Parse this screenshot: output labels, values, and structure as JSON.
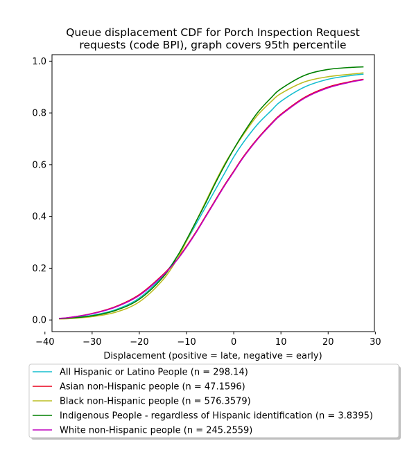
{
  "chart_data": {
    "type": "line",
    "title": "Queue displacement CDF for Porch Inspection Request requests (code BPI), graph covers 95th percentile",
    "title_lines": [
      "Queue displacement CDF for Porch Inspection Request",
      "requests (code BPI), graph covers 95th percentile"
    ],
    "xlabel": "Displacement (positive = late, negative = early)",
    "ylabel": "",
    "xlim": [
      -38.5,
      29.8
    ],
    "ylim": [
      -0.045,
      1.025
    ],
    "x_ticks": [
      -40,
      -30,
      -20,
      -10,
      0,
      10,
      20,
      30
    ],
    "y_ticks": [
      0.0,
      0.2,
      0.4,
      0.6,
      0.8,
      1.0
    ],
    "x_tick_labels": [
      "−40",
      "−30",
      "−20",
      "−10",
      "0",
      "10",
      "20",
      "30"
    ],
    "y_tick_labels": [
      "0.0",
      "0.2",
      "0.4",
      "0.6",
      "0.8",
      "1.0"
    ],
    "grid": false,
    "legend_position": "bottom-outside",
    "series": [
      {
        "name": "All Hispanic or Latino People (n = 298.14)",
        "color": "#17becf",
        "x": [
          -37,
          -35,
          -30,
          -25,
          -20,
          -15,
          -12,
          -10,
          -8,
          -6,
          -4,
          -2,
          0,
          2,
          5,
          8,
          10,
          15,
          20,
          25,
          27.5
        ],
        "y": [
          0.005,
          0.007,
          0.018,
          0.04,
          0.085,
          0.17,
          0.245,
          0.305,
          0.37,
          0.435,
          0.5,
          0.565,
          0.63,
          0.685,
          0.755,
          0.81,
          0.845,
          0.9,
          0.93,
          0.945,
          0.95
        ]
      },
      {
        "name": "Asian non-Hispanic people (n = 47.1596)",
        "color": "#e8001c",
        "x": [
          -37,
          -35,
          -30,
          -25,
          -20,
          -15,
          -12,
          -10,
          -8,
          -6,
          -4,
          -2,
          0,
          2,
          5,
          8,
          10,
          15,
          20,
          25,
          27.5
        ],
        "y": [
          0.006,
          0.009,
          0.025,
          0.052,
          0.098,
          0.175,
          0.235,
          0.285,
          0.34,
          0.4,
          0.46,
          0.52,
          0.575,
          0.63,
          0.7,
          0.76,
          0.795,
          0.86,
          0.9,
          0.922,
          0.93
        ]
      },
      {
        "name": "Black non-Hispanic people (n = 576.3579)",
        "color": "#bcbd22",
        "x": [
          -37,
          -35,
          -30,
          -25,
          -20,
          -15,
          -12,
          -10,
          -8,
          -6,
          -4,
          -2,
          0,
          2,
          5,
          8,
          10,
          15,
          20,
          25,
          27.5
        ],
        "y": [
          0.004,
          0.005,
          0.013,
          0.03,
          0.07,
          0.155,
          0.235,
          0.305,
          0.38,
          0.455,
          0.53,
          0.6,
          0.66,
          0.715,
          0.79,
          0.845,
          0.875,
          0.92,
          0.94,
          0.95,
          0.955
        ]
      },
      {
        "name": "Indigenous People - regardless of Hispanic identification (n = 3.8395)",
        "color": "#008000",
        "x": [
          -37,
          -35,
          -30,
          -25,
          -20,
          -15,
          -12,
          -10,
          -8,
          -6,
          -4,
          -2,
          0,
          2,
          5,
          8,
          10,
          15,
          20,
          25,
          27.5
        ],
        "y": [
          0.005,
          0.007,
          0.016,
          0.037,
          0.08,
          0.165,
          0.245,
          0.31,
          0.38,
          0.45,
          0.525,
          0.595,
          0.66,
          0.72,
          0.8,
          0.86,
          0.893,
          0.945,
          0.968,
          0.976,
          0.978
        ]
      },
      {
        "name": "White non-Hispanic people (n = 245.2559)",
        "color": "#bf00bf",
        "x": [
          -37,
          -35,
          -30,
          -25,
          -20,
          -15,
          -12,
          -10,
          -8,
          -6,
          -4,
          -2,
          0,
          2,
          5,
          8,
          10,
          15,
          20,
          25,
          27.5
        ],
        "y": [
          0.006,
          0.009,
          0.024,
          0.05,
          0.095,
          0.172,
          0.232,
          0.282,
          0.337,
          0.397,
          0.457,
          0.517,
          0.572,
          0.627,
          0.697,
          0.757,
          0.792,
          0.857,
          0.897,
          0.92,
          0.928
        ]
      }
    ]
  }
}
